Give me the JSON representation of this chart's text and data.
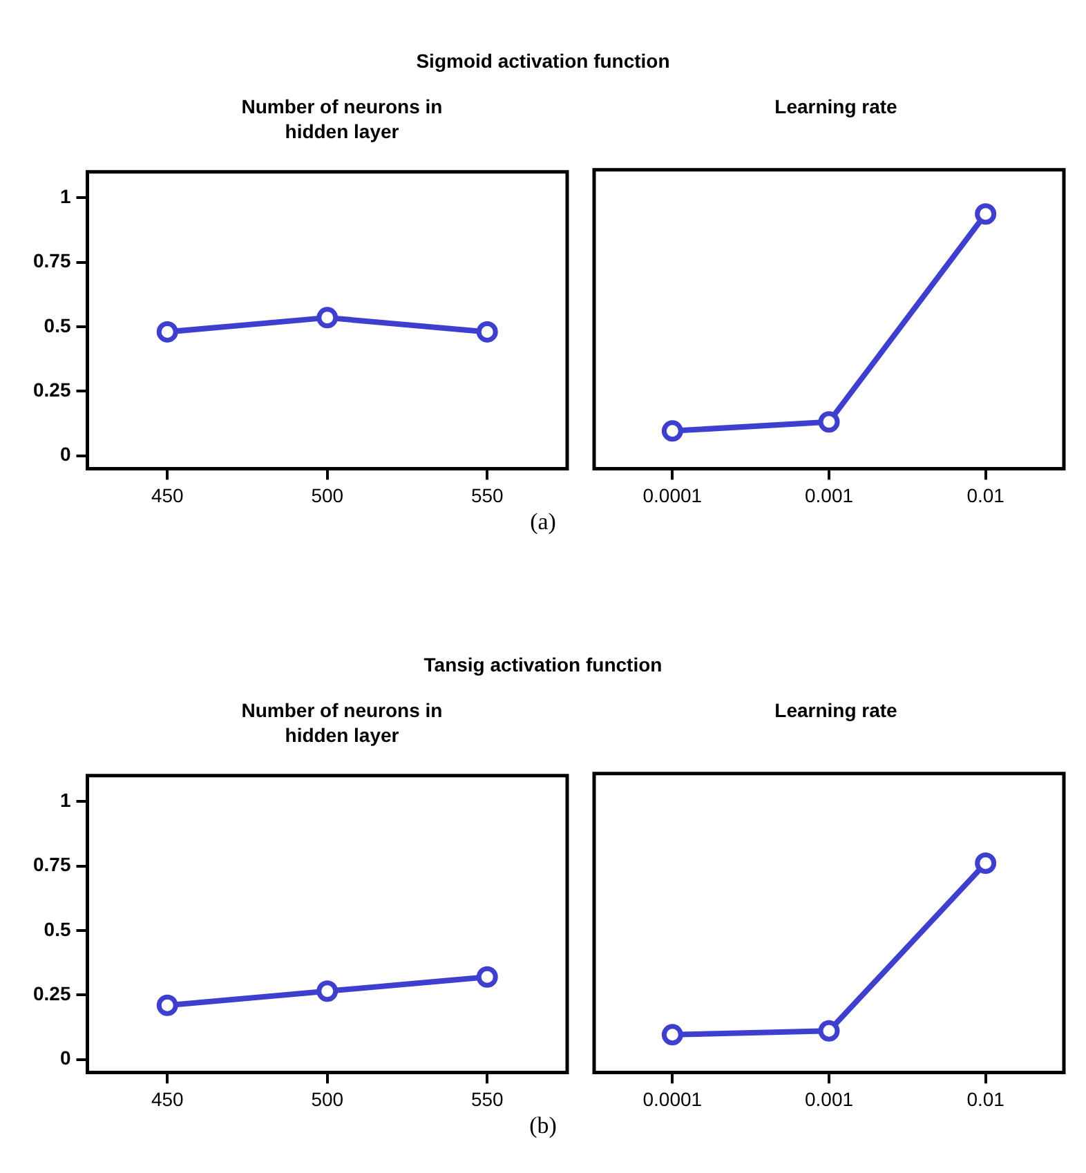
{
  "chart_data": [
    {
      "type": "line",
      "title": "Number of neurons in hidden layer",
      "categories": [
        "450",
        "500",
        "550"
      ],
      "series": [
        {
          "color": "#3f3fcf",
          "values": [
            0.48,
            0.535,
            0.48
          ]
        }
      ],
      "ylim": [
        -0.05,
        1.1
      ],
      "yticks": [
        0,
        0.25,
        0.5,
        0.75,
        1
      ],
      "grid": false,
      "legend": false,
      "marker": "circle",
      "line_style": "solid",
      "annotations": [
        "Sigmoid activation function",
        "(a)"
      ]
    },
    {
      "type": "line",
      "title": "Learning rate",
      "categories": [
        "0.0001",
        "0.001",
        "0.01"
      ],
      "series": [
        {
          "color": "#3f3fcf",
          "values": [
            0.095,
            0.13,
            0.93
          ]
        }
      ],
      "ylim": [
        -0.05,
        1.1
      ],
      "yticks": [
        0,
        0.25,
        0.5,
        0.75,
        1
      ],
      "tick_labels": "x",
      "grid": false,
      "legend": false,
      "marker": "circle",
      "line_style": "solid"
    },
    {
      "type": "line",
      "title": "Number of neurons in hidden layer",
      "categories": [
        "450",
        "500",
        "550"
      ],
      "series": [
        {
          "color": "#3f3fcf",
          "values": [
            0.21,
            0.265,
            0.32
          ]
        }
      ],
      "ylim": [
        -0.05,
        1.1
      ],
      "yticks": [
        0,
        0.25,
        0.5,
        0.75,
        1
      ],
      "grid": false,
      "legend": false,
      "marker": "circle",
      "line_style": "solid",
      "annotations": [
        "Tansig activation function",
        "(b)"
      ]
    },
    {
      "type": "line",
      "title": "Learning rate",
      "categories": [
        "0.0001",
        "0.001",
        "0.01"
      ],
      "series": [
        {
          "color": "#3f3fcf",
          "values": [
            0.095,
            0.11,
            0.755
          ]
        }
      ],
      "ylim": [
        -0.05,
        1.1
      ],
      "yticks": [
        0,
        0.25,
        0.5,
        0.75,
        1
      ],
      "tick_labels": "x",
      "grid": false,
      "legend": false,
      "marker": "circle",
      "line_style": "solid"
    }
  ]
}
